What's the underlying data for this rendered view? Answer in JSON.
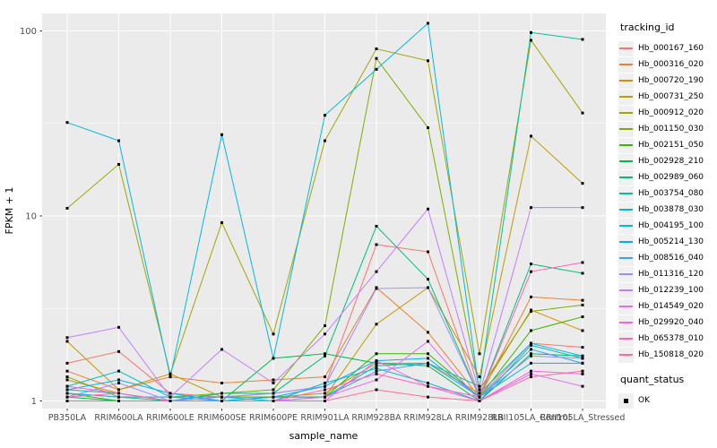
{
  "figure": {
    "background": "#FFFFFF",
    "panel_background": "#EBEBEB",
    "gridline_color": "#FFFFFF",
    "axis_text_color": "#4D4D4D",
    "title_text_color": "#000000",
    "point_color": "#000000"
  },
  "chart_data": {
    "type": "line",
    "title": "",
    "xlabel": "sample_name",
    "ylabel": "FPKM + 1",
    "y_scale": "log10",
    "y_ticks": [
      1,
      10,
      100
    ],
    "ylim": [
      0.91,
      124
    ],
    "grid": "on",
    "legend_position": "right",
    "legend_title": "tracking_id",
    "quant_legend_title": "quant_status",
    "quant_legend_items": [
      "OK"
    ],
    "categories": [
      "PB350LA",
      "RRIM600LA",
      "RRIM600LE",
      "RRIM600SE",
      "RRIM600PE",
      "RRIM901LA",
      "RRIM928BA",
      "RRIM928LA",
      "RRIM928LB",
      "RRII105LA_Control",
      "RRII105LA_Stressed"
    ],
    "series": [
      {
        "name": "Hb_000167_160",
        "color": "#F8766D",
        "values": [
          1.6,
          1.85,
          1.1,
          1.05,
          1.1,
          1.2,
          7.0,
          6.4,
          1.05,
          2.05,
          1.95
        ]
      },
      {
        "name": "Hb_000316_020",
        "color": "#EA8331",
        "values": [
          1.45,
          1.15,
          1.35,
          1.25,
          1.3,
          1.35,
          4.1,
          2.35,
          1.05,
          3.65,
          3.5
        ]
      },
      {
        "name": "Hb_000720_190",
        "color": "#D89000",
        "values": [
          1.3,
          1.1,
          1.0,
          1.0,
          1.05,
          1.1,
          1.6,
          1.6,
          1.1,
          3.1,
          2.4
        ]
      },
      {
        "name": "Hb_000731_250",
        "color": "#C09B00",
        "values": [
          2.1,
          1.15,
          1.4,
          1.05,
          1.05,
          1.05,
          2.6,
          4.1,
          1.35,
          27.0,
          15.0
        ]
      },
      {
        "name": "Hb_000912_020",
        "color": "#A3A500",
        "values": [
          11.0,
          19.0,
          1.4,
          9.2,
          2.3,
          25.5,
          80.0,
          69.0,
          1.8,
          89.0,
          36.0
        ]
      },
      {
        "name": "Hb_001150_030",
        "color": "#7CAE00",
        "values": [
          1.35,
          1.05,
          1.05,
          1.1,
          1.15,
          2.55,
          71.0,
          30.0,
          1.15,
          3.05,
          3.3
        ]
      },
      {
        "name": "Hb_002151_050",
        "color": "#39B600",
        "values": [
          1.1,
          1.0,
          1.0,
          1.05,
          1.05,
          1.05,
          1.8,
          1.8,
          1.05,
          2.4,
          2.85
        ]
      },
      {
        "name": "Hb_002928_210",
        "color": "#00BB4E",
        "values": [
          1.05,
          1.0,
          1.0,
          1.0,
          1.7,
          1.8,
          1.6,
          1.55,
          1.0,
          1.8,
          1.75
        ]
      },
      {
        "name": "Hb_002989_060",
        "color": "#00BF7D",
        "values": [
          1.1,
          1.05,
          1.0,
          1.1,
          1.1,
          1.75,
          8.8,
          4.55,
          1.05,
          5.5,
          4.9
        ]
      },
      {
        "name": "Hb_003754_080",
        "color": "#00C1A3",
        "values": [
          1.15,
          1.1,
          1.0,
          1.0,
          1.05,
          1.05,
          1.55,
          1.6,
          1.2,
          98.0,
          90.0
        ]
      },
      {
        "name": "Hb_003878_030",
        "color": "#00BFC4",
        "values": [
          1.2,
          1.45,
          1.05,
          1.05,
          1.0,
          1.25,
          1.5,
          1.25,
          1.0,
          2.0,
          1.7
        ]
      },
      {
        "name": "Hb_004195_100",
        "color": "#00BAE0",
        "values": [
          32.0,
          25.5,
          1.35,
          27.5,
          1.7,
          35.0,
          62.0,
          110.0,
          1.1,
          2.05,
          1.75
        ]
      },
      {
        "name": "Hb_005214_130",
        "color": "#00B0F6",
        "values": [
          1.15,
          1.3,
          1.1,
          1.0,
          1.05,
          1.2,
          1.65,
          1.7,
          1.05,
          1.6,
          1.6
        ]
      },
      {
        "name": "Hb_008516_040",
        "color": "#35A2FF",
        "values": [
          1.1,
          1.05,
          1.05,
          1.0,
          1.0,
          1.05,
          1.45,
          1.6,
          1.05,
          1.9,
          1.6
        ]
      },
      {
        "name": "Hb_011316_120",
        "color": "#9590FF",
        "values": [
          1.05,
          1.25,
          1.0,
          1.05,
          1.1,
          1.2,
          4.05,
          4.1,
          1.05,
          1.75,
          1.7
        ]
      },
      {
        "name": "Hb_012239_100",
        "color": "#C77CFF",
        "values": [
          2.2,
          2.5,
          1.05,
          1.9,
          1.25,
          2.3,
          5.0,
          10.9,
          1.1,
          11.1,
          11.1
        ]
      },
      {
        "name": "Hb_014549_020",
        "color": "#E76BF3",
        "values": [
          1.0,
          1.0,
          1.0,
          1.0,
          1.0,
          1.05,
          1.3,
          2.1,
          1.0,
          1.4,
          1.2
        ]
      },
      {
        "name": "Hb_029920_040",
        "color": "#FA62DB",
        "values": [
          1.2,
          1.1,
          1.0,
          1.0,
          1.0,
          1.0,
          1.65,
          1.2,
          1.0,
          1.45,
          1.4
        ]
      },
      {
        "name": "Hb_065378_010",
        "color": "#FF62BC",
        "values": [
          1.05,
          1.1,
          1.0,
          1.0,
          1.0,
          1.15,
          1.4,
          1.2,
          1.05,
          5.0,
          5.6
        ]
      },
      {
        "name": "Hb_150818_020",
        "color": "#FF6A98",
        "values": [
          1.0,
          1.0,
          1.0,
          1.0,
          1.0,
          1.0,
          1.15,
          1.05,
          1.0,
          1.35,
          1.45
        ]
      }
    ]
  }
}
